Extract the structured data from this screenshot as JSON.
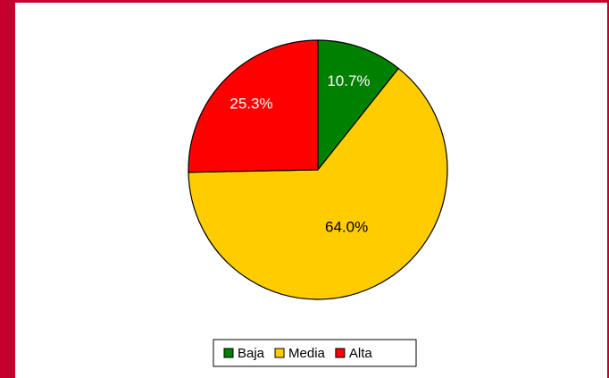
{
  "chart_data": {
    "type": "pie",
    "categories": [
      "Baja",
      "Media",
      "Alta"
    ],
    "values": [
      10.7,
      64,
      25.3
    ],
    "value_labels": [
      "10.7%",
      "64.0%",
      "25.3%"
    ],
    "colors": [
      "#008000",
      "#ffcc00",
      "#ff0000"
    ],
    "legend": "bottom"
  }
}
